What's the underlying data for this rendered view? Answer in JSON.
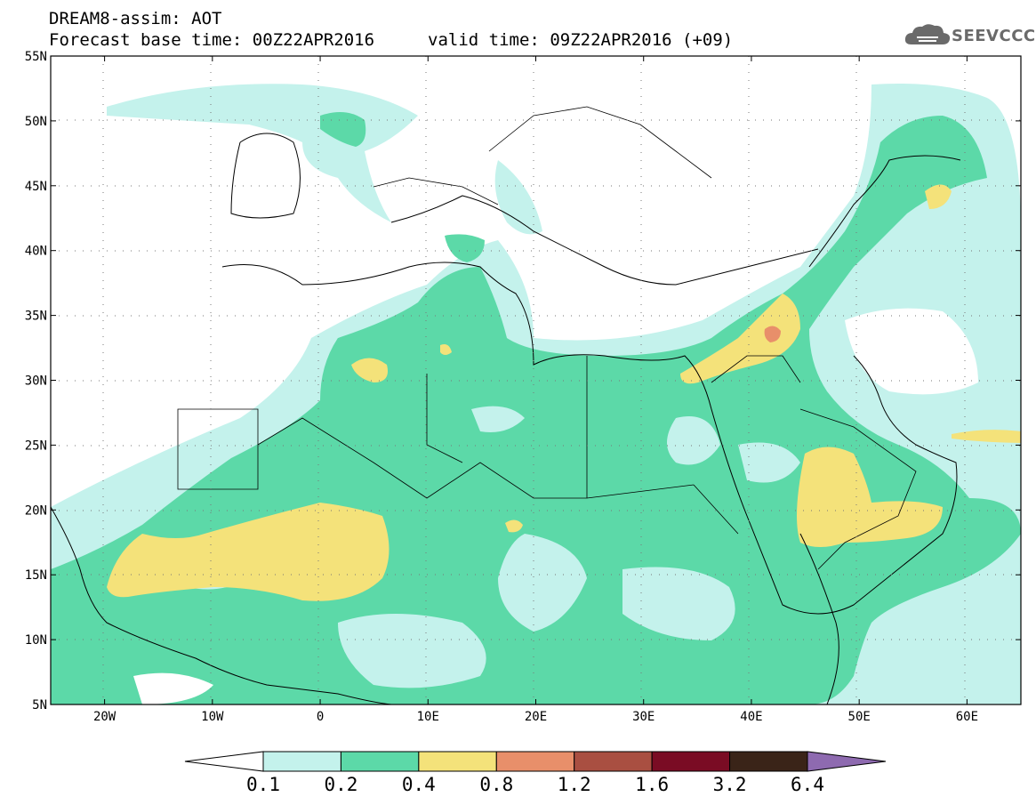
{
  "title": {
    "line1": "DREAM8-assim: AOT",
    "base_time": "Forecast base time: 00Z22APR2016",
    "valid_time": "valid time: 09Z22APR2016 (+09)"
  },
  "logo": {
    "text": "SEEVCCC",
    "icon": "cloud-icon"
  },
  "map": {
    "lon_range": [
      -25,
      65
    ],
    "lat_range": [
      5,
      55
    ],
    "lat_ticks": [
      "5N",
      "10N",
      "15N",
      "20N",
      "25N",
      "30N",
      "35N",
      "40N",
      "45N",
      "50N",
      "55N"
    ],
    "lon_ticks": [
      "20W",
      "10W",
      "0",
      "10E",
      "20E",
      "30E",
      "40E",
      "50E",
      "60E"
    ],
    "grid": "dotted"
  },
  "colorbar": {
    "labels": [
      "0.1",
      "0.2",
      "0.4",
      "0.8",
      "1.2",
      "1.6",
      "3.2",
      "6.4"
    ],
    "colors": [
      "#c4f2ec",
      "#5cd9a8",
      "#f4e27a",
      "#e88f6a",
      "#a94f41",
      "#7a0c24",
      "#3a2418",
      "#8e6ab0"
    ],
    "under_color": "#ffffff",
    "over_color": "#8e6ab0"
  }
}
